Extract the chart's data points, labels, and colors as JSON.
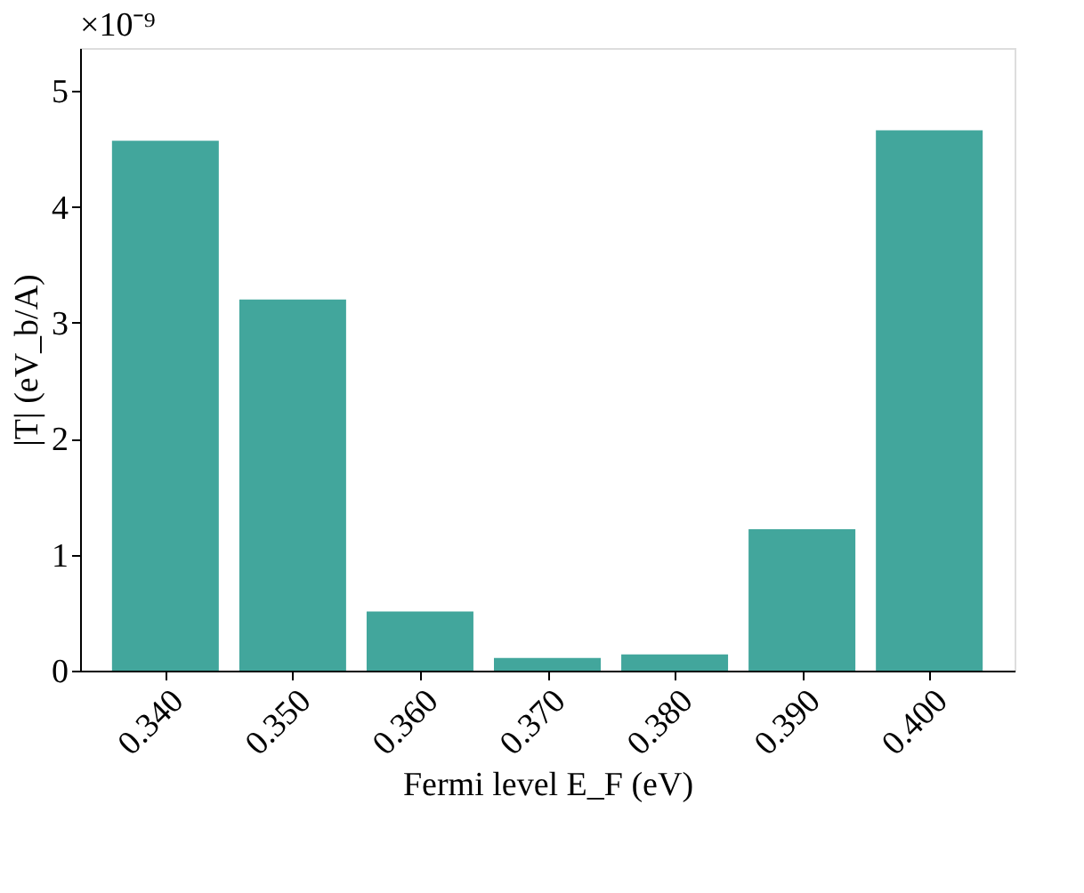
{
  "chart_data": {
    "type": "bar",
    "xlabel": "Fermi level E_F (eV)",
    "ylabel": "|T| (eV_b/A)",
    "categories": [
      "0.340",
      "0.350",
      "0.360",
      "0.370",
      "0.380",
      "0.390",
      "0.400"
    ],
    "values": [
      4.57,
      3.2,
      0.51,
      0.11,
      0.14,
      1.22,
      4.66
    ],
    "color": "#42a69c",
    "ylim": [
      0,
      5.37
    ],
    "yticks": [
      0,
      1,
      2,
      3,
      4,
      5
    ],
    "annotations": [
      "×10⁻⁹"
    ],
    "grid": false
  }
}
